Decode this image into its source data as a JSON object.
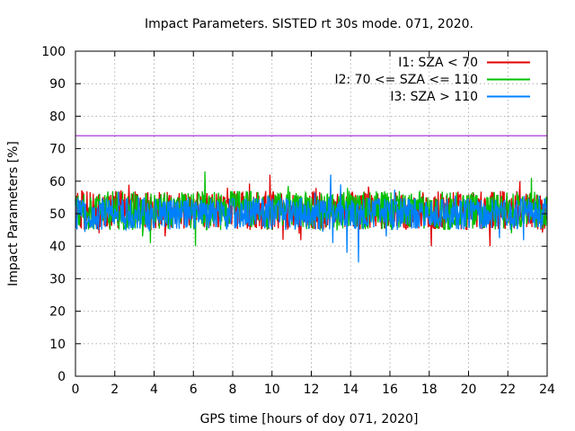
{
  "chart_data": {
    "type": "line",
    "title": "Impact Parameters. SISTED rt 30s mode. 071, 2020.",
    "xlabel": "GPS time [hours of doy 071, 2020]",
    "ylabel": "Impact Parameters [%]",
    "xlim": [
      0,
      24
    ],
    "ylim": [
      0,
      100
    ],
    "xticks": [
      0,
      2,
      4,
      6,
      8,
      10,
      12,
      14,
      16,
      18,
      20,
      22,
      24
    ],
    "yticks": [
      0,
      10,
      20,
      30,
      40,
      50,
      60,
      70,
      80,
      90,
      100
    ],
    "grid": true,
    "legend_position": "top-right",
    "threshold": {
      "value": 74,
      "color": "#9400d3"
    },
    "series": [
      {
        "name": "I1: SZA < 70",
        "color": "#e00000",
        "mean": 51,
        "spread": 6,
        "x_start": 0,
        "x_end": 24,
        "spikes": [
          {
            "x": 1.2,
            "y": 44
          },
          {
            "x": 9.9,
            "y": 62
          },
          {
            "x": 18.1,
            "y": 40
          },
          {
            "x": 21.1,
            "y": 40
          },
          {
            "x": 22.6,
            "y": 60
          }
        ]
      },
      {
        "name": "I2: 70 <= SZA <= 110",
        "color": "#00c000",
        "mean": 51,
        "spread": 6,
        "x_start": 0,
        "x_end": 24,
        "spikes": [
          {
            "x": 6.6,
            "y": 63
          },
          {
            "x": 6.1,
            "y": 40
          },
          {
            "x": 3.4,
            "y": 43
          },
          {
            "x": 23.2,
            "y": 61
          },
          {
            "x": 22.2,
            "y": 44
          }
        ]
      },
      {
        "name": "I3: SZA > 110",
        "color": "#0080ff",
        "mean": 50,
        "spread": 5,
        "x_start": 0,
        "x_end": 24,
        "spikes": [
          {
            "x": 13.0,
            "y": 62
          },
          {
            "x": 14.4,
            "y": 35
          },
          {
            "x": 13.8,
            "y": 38
          },
          {
            "x": 13.1,
            "y": 41
          },
          {
            "x": 15.8,
            "y": 43
          },
          {
            "x": 13.5,
            "y": 59
          }
        ]
      }
    ]
  }
}
